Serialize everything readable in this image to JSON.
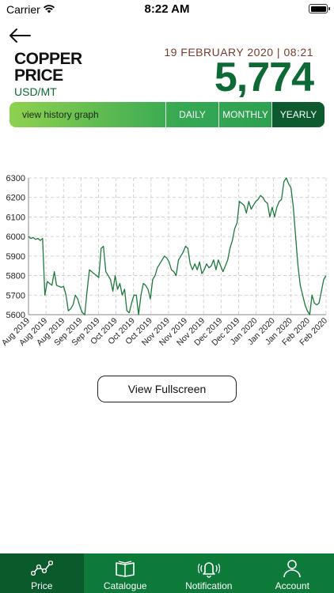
{
  "status": {
    "carrier": "Carrier",
    "time": "8:22 AM"
  },
  "header": {
    "title_line1": "COPPER",
    "title_line2": "PRICE",
    "unit": "USD/MT",
    "date": "19 FEBRUARY 2020 | 08:21",
    "price": "5,774"
  },
  "range": {
    "history_label": "view history graph",
    "options": [
      "DAILY",
      "MONTHLY",
      "YEARLY"
    ],
    "selected": "YEARLY"
  },
  "fullscreen_label": "View Fullscreen",
  "tabs": [
    {
      "label": "Price",
      "icon": "line-chart-icon",
      "active": true
    },
    {
      "label": "Catalogue",
      "icon": "book-icon",
      "active": false
    },
    {
      "label": "Notification",
      "icon": "bell-icon",
      "active": false
    },
    {
      "label": "Account",
      "icon": "person-icon",
      "active": false
    }
  ],
  "colors": {
    "brand_green": "#0c6a35",
    "line": "#1e7a3c",
    "date_text": "#7a3a2c",
    "tabbar": "#0e7a3a"
  },
  "chart_data": {
    "type": "line",
    "ylim": [
      5600,
      6300
    ],
    "yticks": [
      5600,
      5700,
      5800,
      5900,
      6000,
      6100,
      6200,
      6300
    ],
    "xticks": [
      "Aug 2019",
      "Aug 2019",
      "Aug 2019",
      "Sep 2019",
      "Sep 2019",
      "Oct 2019",
      "Oct 2019",
      "Oct 2019",
      "Nov 2019",
      "Nov 2019",
      "Nov 2019",
      "Dec 2019",
      "Dec 2019",
      "Jan 2020",
      "Jan 2020",
      "Jan 2020",
      "Feb 2020",
      "Feb 2020"
    ],
    "grid": true,
    "values": [
      6000,
      5990,
      5995,
      5985,
      5990,
      5980,
      5990,
      5700,
      5770,
      5760,
      5750,
      5820,
      5750,
      5745,
      5740,
      5745,
      5700,
      5620,
      5630,
      5650,
      5700,
      5680,
      5640,
      5610,
      5600,
      5720,
      5830,
      5820,
      5810,
      5800,
      5790,
      5940,
      5950,
      5820,
      5800,
      5780,
      5720,
      5800,
      5730,
      5760,
      5700,
      5730,
      5620,
      5610,
      5660,
      5700,
      5700,
      5600,
      5700,
      5760,
      5750,
      5730,
      5680,
      5780,
      5800,
      5840,
      5860,
      5880,
      5900,
      5890,
      5870,
      5830,
      5820,
      5800,
      5880,
      5900,
      5920,
      5950,
      5940,
      5860,
      5830,
      5860,
      5830,
      5870,
      5810,
      5830,
      5860,
      5840,
      5850,
      5880,
      5830,
      5880,
      5850,
      5820,
      5850,
      5880,
      5940,
      5980,
      6040,
      6070,
      6180,
      6170,
      6160,
      6120,
      6180,
      6140,
      6160,
      6180,
      6190,
      6210,
      6200,
      6180,
      6170,
      6100,
      6150,
      6100,
      6150,
      6180,
      6190,
      6280,
      6300,
      6270,
      6250,
      6150,
      6000,
      5850,
      5750,
      5700,
      5650,
      5620,
      5600,
      5700,
      5660,
      5650,
      5660,
      5720,
      5780,
      5800
    ]
  }
}
